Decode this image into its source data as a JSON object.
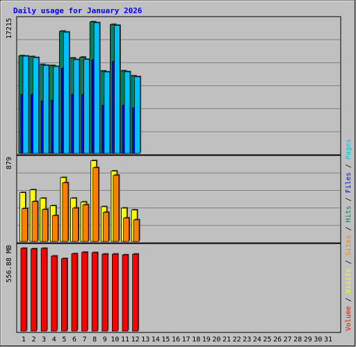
{
  "chart_data": {
    "type": "bar",
    "title": "Daily usage for January 2026",
    "x": {
      "labels": [
        "1",
        "2",
        "3",
        "4",
        "5",
        "6",
        "7",
        "8",
        "9",
        "10",
        "11",
        "12",
        "13",
        "14",
        "15",
        "16",
        "17",
        "18",
        "19",
        "20",
        "21",
        "22",
        "23",
        "24",
        "25",
        "26",
        "27",
        "28",
        "29",
        "30",
        "31"
      ],
      "weekend_days": [
        "3",
        "4",
        "10",
        "11",
        "17",
        "18",
        "24",
        "25",
        "31"
      ],
      "label_color": "#000000",
      "weekend_label_color": "#00805c"
    },
    "legend": {
      "top": [
        {
          "text": "Hits",
          "color": "#00805c"
        },
        {
          "text": "Files",
          "color": "#0000ff"
        },
        {
          "text": "Pages",
          "color": "#00c0ff"
        }
      ],
      "middle": [
        {
          "text": "Visits",
          "color": "#ffff00"
        },
        {
          "text": "Sites",
          "color": "#ff8000"
        }
      ],
      "bottom": [
        {
          "text": "Volume",
          "color": "#ff0000"
        }
      ],
      "separator": " / ",
      "separator_color": "#000000"
    },
    "panels": [
      {
        "id": "hits-files-pages",
        "max_label": "17215",
        "ymax": 17215,
        "grid": true,
        "series": [
          {
            "name": "Hits",
            "color": "#00805c",
            "values": [
              12610,
              12490,
              11470,
              11340,
              15780,
              12310,
              12420,
              16990,
              10640,
              16650,
              10660,
              10010
            ]
          },
          {
            "name": "Files",
            "color": "#0000ff",
            "values": [
              7620,
              7620,
              6750,
              6860,
              11000,
              7620,
              7620,
              12070,
              6210,
              11860,
              6210,
              5860
            ]
          },
          {
            "name": "Pages",
            "color": "#00c0ff",
            "values": [
              12560,
              12370,
              11370,
              11220,
              15660,
              12110,
              12140,
              16870,
              10510,
              16530,
              10540,
              9890
            ]
          }
        ]
      },
      {
        "id": "visits-sites",
        "max_label": "879",
        "ymax": 879,
        "grid": true,
        "series": [
          {
            "name": "Visits",
            "color": "#ffff00",
            "values": [
              520,
              550,
              460,
              380,
              680,
              460,
              420,
              860,
              370,
              750,
              355,
              335
            ]
          },
          {
            "name": "Sites",
            "color": "#ff8000",
            "values": [
              350,
              425,
              340,
              275,
              625,
              355,
              390,
              785,
              310,
              705,
              250,
              230
            ]
          }
        ]
      },
      {
        "id": "volume",
        "max_label": "556.88 MB",
        "ymax": 556.88,
        "grid": false,
        "series": [
          {
            "name": "Volume",
            "color": "#ff0000",
            "values": [
              548,
              545,
              548,
              497,
              480,
              512,
              522,
              520,
              510,
              510,
              505,
              510
            ]
          }
        ]
      }
    ]
  }
}
